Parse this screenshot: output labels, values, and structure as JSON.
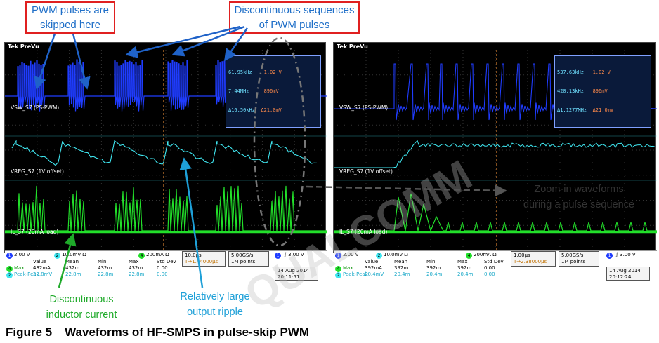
{
  "callouts": {
    "skipped": "PWM pulses are skipped here",
    "skipped_line1": "PWM pulses are",
    "skipped_line2": "skipped here",
    "sequences_line1": "Discontinuous sequences",
    "sequences_line2": "of PWM pulses",
    "zoom_line1": "Zoom-in waveforms",
    "zoom_line2": "during a pulse sequence",
    "inductor_line1": "Discontinuous",
    "inductor_line2": "inductor current",
    "ripple_line1": "Relatively large",
    "ripple_line2": "output ripple"
  },
  "colors": {
    "ch1": "#1f3cff",
    "ch2": "#3fe6f0",
    "ch4": "#22e02a",
    "callout_red": "#e02020",
    "callout_text_blue": "#1f6fc8",
    "callout_text_green": "#1faa2a",
    "callout_text_cyan": "#1ea0d8"
  },
  "left_scope": {
    "brand": "Tek PreVu",
    "meas": {
      "r1a": "61.95kHz",
      "r1b": "1.02 V",
      "r2a": "7.44MHz",
      "r2b": "896mV",
      "r3a": "Δ16.50kHz",
      "r3b": "Δ21.0mV"
    },
    "ch1_label": "VSW_S7 (PS-PWM)",
    "ch2_label": "VREG_S7 (1V offset)",
    "ch4_label": "IL_S7 (20mA load)",
    "status": {
      "ch1_scale": "2.00 V",
      "ch2_scale": "10.0mV Ω",
      "ch4_scale": "200mA Ω",
      "timebase": "10.0µs",
      "delay": "1.44000µs",
      "sample": "5.00GS/s",
      "points": "1M points",
      "trig_level": "3.00 V",
      "date": "14 Aug 2014",
      "time": "20:11:51",
      "hdr_value": "Value",
      "hdr_mean": "Mean",
      "hdr_min": "Min",
      "hdr_max": "Max",
      "hdr_std": "Std Dev",
      "row1_name": "Max",
      "row1_value": "432mA",
      "row1_mean": "432m",
      "row1_min": "432m",
      "row1_max": "432m",
      "row1_std": "0.00",
      "row2_name": "Peak-Peak",
      "row2_value": "22.8mV",
      "row2_mean": "22.8m",
      "row2_min": "22.8m",
      "row2_max": "22.8m",
      "row2_std": "0.00"
    }
  },
  "right_scope": {
    "brand": "Tek PreVu",
    "meas": {
      "r1a": "537.63kHz",
      "r1b": "1.02 V",
      "r2a": "420.13kHz",
      "r2b": "896mV",
      "r3a": "Δ1.1277MHz",
      "r3b": "Δ21.0mV"
    },
    "ch1_label": "VSW_S7 (PS-PWM)",
    "ch2_label": "VREG_S7 (1V offset)",
    "ch4_label": "IL_S7 (20mA load)",
    "status": {
      "ch1_scale": "2.00 V",
      "ch2_scale": "10.0mV Ω",
      "ch4_scale": "200mA Ω",
      "timebase": "1.00µs",
      "delay": "2.38000µs",
      "sample": "5.00GS/s",
      "points": "1M points",
      "trig_level": "3.00 V",
      "date": "14 Aug 2014",
      "time": "20:12:24",
      "hdr_value": "Value",
      "hdr_mean": "Mean",
      "hdr_min": "Min",
      "hdr_max": "Max",
      "hdr_std": "Std Dev",
      "row1_name": "Max",
      "row1_value": "392mA",
      "row1_mean": "392m",
      "row1_min": "392m",
      "row1_max": "392m",
      "row1_std": "0.00",
      "row2_name": "Peak-Peak",
      "row2_value": "20.4mV",
      "row2_mean": "20.4m",
      "row2_min": "20.4m",
      "row2_max": "20.4m",
      "row2_std": "0.00"
    }
  },
  "caption": {
    "number": "Figure 5",
    "text": "Waveforms of HF-SMPS in pulse-skip PWM"
  },
  "watermark": "QUALCOMM"
}
